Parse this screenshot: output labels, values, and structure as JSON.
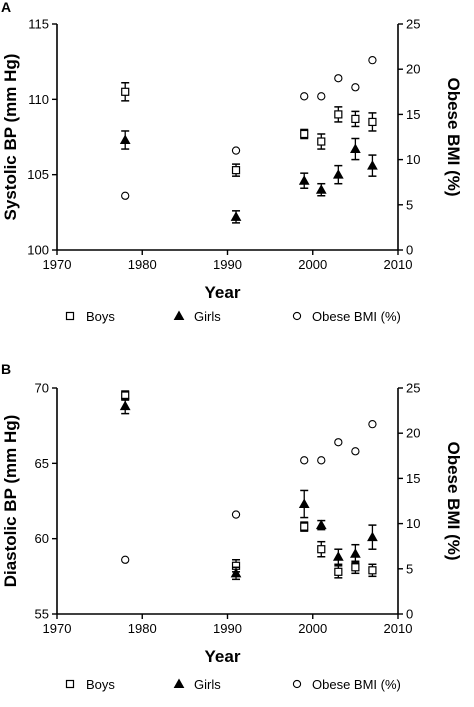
{
  "chart_data": [
    {
      "panel": "A",
      "type": "scatter",
      "xlabel": "Year",
      "ylabel": "Systolic BP (mm Hg)",
      "y2label": "Obese BMI (%)",
      "xlim": [
        1970,
        2010
      ],
      "ylim": [
        100,
        115
      ],
      "y2lim": [
        0,
        25
      ],
      "xticks": [
        1970,
        1980,
        1990,
        2000,
        2010
      ],
      "yticks": [
        100,
        105,
        110,
        115
      ],
      "y2ticks": [
        0,
        5,
        10,
        15,
        20,
        25
      ],
      "grid": false,
      "legend_position": "bottom",
      "series": [
        {
          "name": "Boys",
          "axis": "left",
          "marker": "open-square",
          "points": [
            {
              "x": 1978,
              "y": 110.5,
              "err": 0.6
            },
            {
              "x": 1991,
              "y": 105.3,
              "err": 0.4
            },
            {
              "x": 1999,
              "y": 107.7,
              "err": 0.3
            },
            {
              "x": 2001,
              "y": 107.2,
              "err": 0.5
            },
            {
              "x": 2003,
              "y": 109.0,
              "err": 0.5
            },
            {
              "x": 2005,
              "y": 108.7,
              "err": 0.5
            },
            {
              "x": 2007,
              "y": 108.5,
              "err": 0.6
            }
          ]
        },
        {
          "name": "Girls",
          "axis": "left",
          "marker": "filled-triangle",
          "points": [
            {
              "x": 1978,
              "y": 107.3,
              "err": 0.6
            },
            {
              "x": 1991,
              "y": 102.2,
              "err": 0.4
            },
            {
              "x": 1999,
              "y": 104.6,
              "err": 0.5
            },
            {
              "x": 2001,
              "y": 104.0,
              "err": 0.4
            },
            {
              "x": 2003,
              "y": 105.0,
              "err": 0.6
            },
            {
              "x": 2005,
              "y": 106.7,
              "err": 0.7
            },
            {
              "x": 2007,
              "y": 105.6,
              "err": 0.7
            }
          ]
        },
        {
          "name": "Obese BMI (%)",
          "axis": "right",
          "marker": "open-circle",
          "points": [
            {
              "x": 1978,
              "y": 6
            },
            {
              "x": 1991,
              "y": 11
            },
            {
              "x": 1999,
              "y": 17
            },
            {
              "x": 2001,
              "y": 17
            },
            {
              "x": 2003,
              "y": 19
            },
            {
              "x": 2005,
              "y": 18
            },
            {
              "x": 2007,
              "y": 21
            }
          ]
        }
      ]
    },
    {
      "panel": "B",
      "type": "scatter",
      "xlabel": "Year",
      "ylabel": "Diastolic BP (mm Hg)",
      "y2label": "Obese BMI (%)",
      "xlim": [
        1970,
        2010
      ],
      "ylim": [
        55,
        70
      ],
      "y2lim": [
        0,
        25
      ],
      "xticks": [
        1970,
        1980,
        1990,
        2000,
        2010
      ],
      "yticks": [
        55,
        60,
        65,
        70
      ],
      "y2ticks": [
        0,
        5,
        10,
        15,
        20,
        25
      ],
      "grid": false,
      "legend_position": "bottom",
      "series": [
        {
          "name": "Boys",
          "axis": "left",
          "marker": "open-square",
          "points": [
            {
              "x": 1978,
              "y": 69.5,
              "err": 0.3
            },
            {
              "x": 1991,
              "y": 58.2,
              "err": 0.4
            },
            {
              "x": 1999,
              "y": 60.8,
              "err": 0.3
            },
            {
              "x": 2001,
              "y": 59.3,
              "err": 0.5
            },
            {
              "x": 2003,
              "y": 57.8,
              "err": 0.4
            },
            {
              "x": 2005,
              "y": 58.1,
              "err": 0.4
            },
            {
              "x": 2007,
              "y": 57.9,
              "err": 0.4
            }
          ]
        },
        {
          "name": "Girls",
          "axis": "left",
          "marker": "filled-triangle",
          "points": [
            {
              "x": 1978,
              "y": 68.8,
              "err": 0.5
            },
            {
              "x": 1991,
              "y": 57.7,
              "err": 0.4
            },
            {
              "x": 1999,
              "y": 62.3,
              "err": 0.9
            },
            {
              "x": 2001,
              "y": 60.9,
              "err": 0.3
            },
            {
              "x": 2003,
              "y": 58.8,
              "err": 0.5
            },
            {
              "x": 2005,
              "y": 59.0,
              "err": 0.6
            },
            {
              "x": 2007,
              "y": 60.1,
              "err": 0.8
            }
          ]
        },
        {
          "name": "Obese BMI (%)",
          "axis": "right",
          "marker": "open-circle",
          "points": [
            {
              "x": 1978,
              "y": 6
            },
            {
              "x": 1991,
              "y": 11
            },
            {
              "x": 1999,
              "y": 17
            },
            {
              "x": 2001,
              "y": 17
            },
            {
              "x": 2003,
              "y": 19
            },
            {
              "x": 2005,
              "y": 18
            },
            {
              "x": 2007,
              "y": 21
            }
          ]
        }
      ]
    }
  ]
}
